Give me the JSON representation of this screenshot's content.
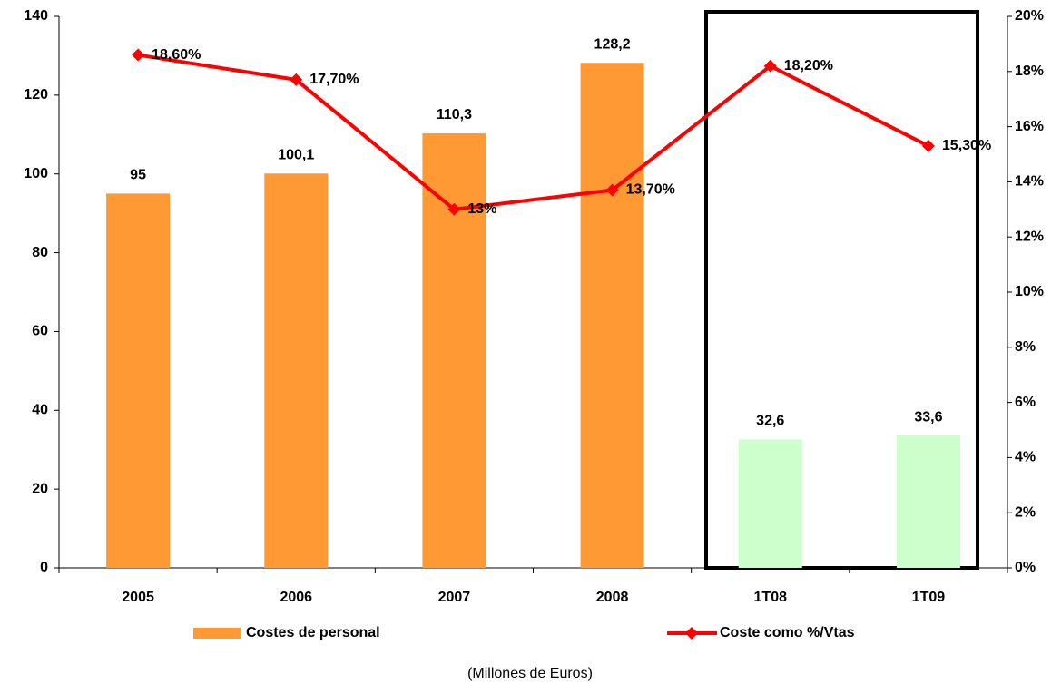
{
  "chart_data": {
    "type": "bar",
    "caption": "(Millones de Euros)",
    "categories": [
      "2005",
      "2006",
      "2007",
      "2008",
      "1T08",
      "1T09"
    ],
    "series": [
      {
        "name": "Costes de personal",
        "type": "bar",
        "color": "#ff9933",
        "colors": [
          "#ff9933",
          "#ff9933",
          "#ff9933",
          "#ff9933",
          "#ccffcc",
          "#ccffcc"
        ],
        "values": [
          95,
          100.1,
          110.3,
          128.2,
          32.6,
          33.6
        ],
        "value_labels": [
          "95",
          "100,1",
          "110,3",
          "128,2",
          "32,6",
          "33,6"
        ]
      },
      {
        "name": "Coste como %/Vtas",
        "type": "line",
        "axis": "y2",
        "color": "#ff0000",
        "values": [
          18.6,
          17.7,
          13,
          13.7,
          18.2,
          15.3
        ],
        "value_labels": [
          "18,60%",
          "17,70%",
          "13%",
          "13,70%",
          "18,20%",
          "15,30%"
        ]
      }
    ],
    "ylim": [
      0,
      140
    ],
    "yticks": [
      0,
      20,
      40,
      60,
      80,
      100,
      120,
      140
    ],
    "y2lim": [
      0,
      20
    ],
    "y2ticks": [
      {
        "value": 0,
        "label": "0%"
      },
      {
        "value": 2,
        "label": "2%"
      },
      {
        "value": 4,
        "label": "4%"
      },
      {
        "value": 6,
        "label": "6%"
      },
      {
        "value": 8,
        "label": "8%"
      },
      {
        "value": 10,
        "label": "10%"
      },
      {
        "value": 12,
        "label": "12%"
      },
      {
        "value": 14,
        "label": "14%"
      },
      {
        "value": 16,
        "label": "16%"
      },
      {
        "value": 18,
        "label": "18%"
      },
      {
        "value": 20,
        "label": "20%"
      }
    ],
    "legend": "bottom",
    "grid": false
  }
}
